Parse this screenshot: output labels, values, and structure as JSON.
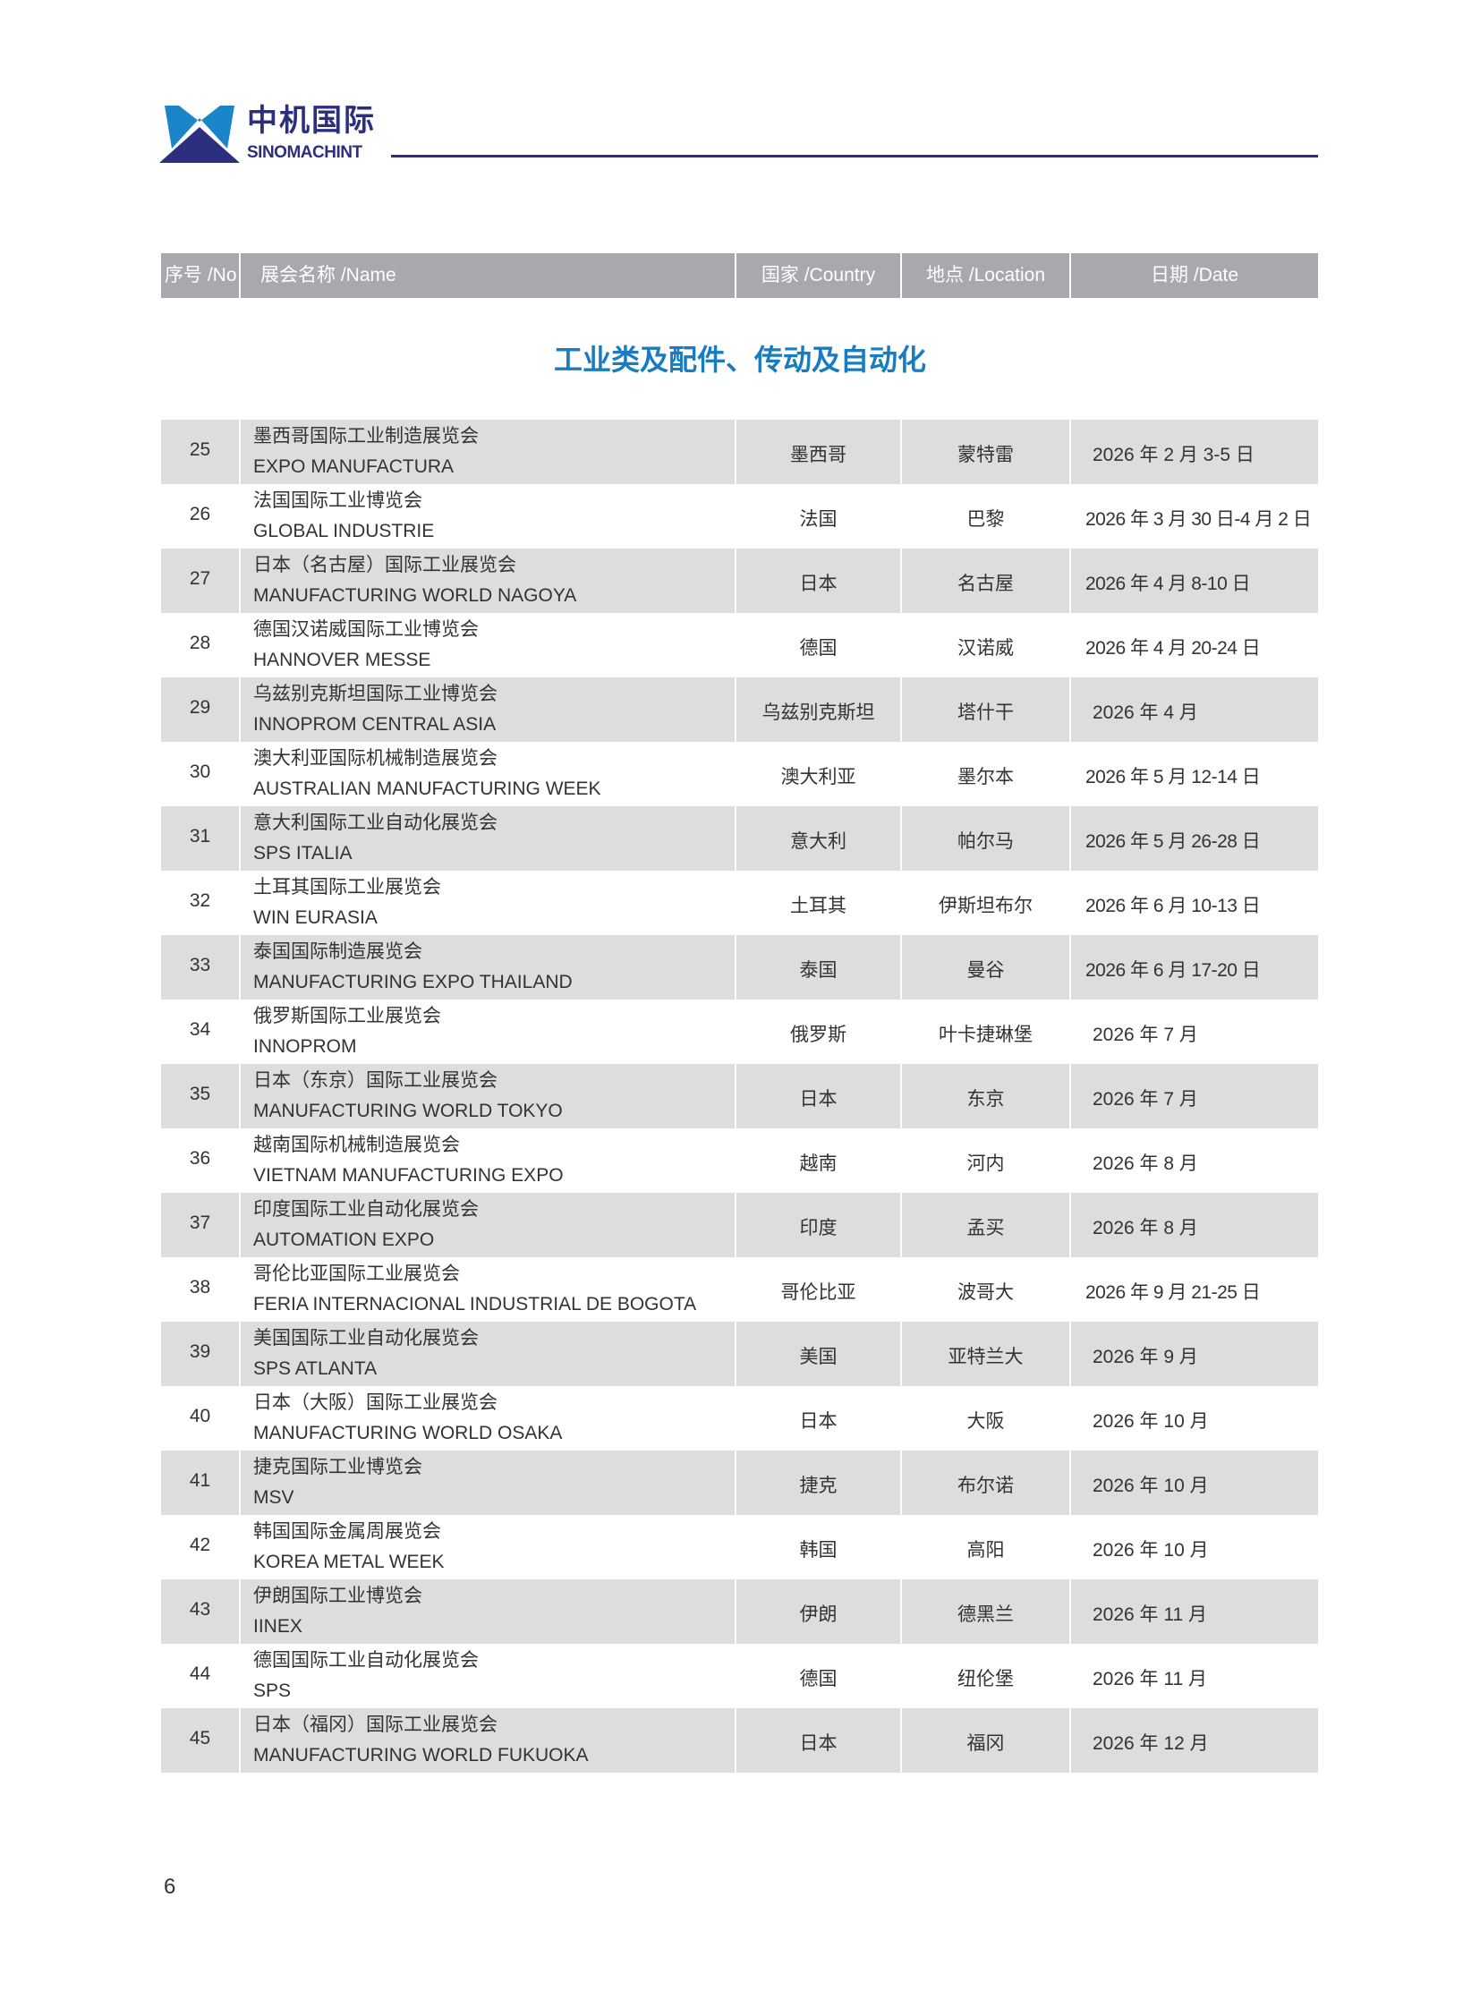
{
  "header": {
    "logo_cn": "中机国际",
    "logo_en": "SINOMACHINT",
    "colors": {
      "navy": "#2b2f7e",
      "blue": "#1a85c8"
    }
  },
  "columns": [
    "序号 /No",
    "展会名称 /Name",
    "国家 /Country",
    "地点 /Location",
    "日期 /Date"
  ],
  "section_title": "工业类及配件、传动及自动化",
  "rows": [
    {
      "no": "25",
      "name_cn": "墨西哥国际工业制造展览会",
      "name_en": "EXPO MANUFACTURA",
      "country": "墨西哥",
      "location": "蒙特雷",
      "date": "2026 年 2 月 3-5 日"
    },
    {
      "no": "26",
      "name_cn": "法国国际工业博览会",
      "name_en": "GLOBAL INDUSTRIE",
      "country": "法国",
      "location": "巴黎",
      "date": "2026 年 3 月 30 日-4 月 2 日"
    },
    {
      "no": "27",
      "name_cn": "日本（名古屋）国际工业展览会",
      "name_en": "MANUFACTURING WORLD NAGOYA",
      "country": "日本",
      "location": "名古屋",
      "date": "2026 年 4 月 8-10 日"
    },
    {
      "no": "28",
      "name_cn": "德国汉诺威国际工业博览会",
      "name_en": "HANNOVER MESSE",
      "country": "德国",
      "location": "汉诺威",
      "date": "2026 年 4 月 20-24 日"
    },
    {
      "no": "29",
      "name_cn": "乌兹别克斯坦国际工业博览会",
      "name_en": "INNOPROM CENTRAL ASIA",
      "country": "乌兹别克斯坦",
      "location": "塔什干",
      "date": "2026 年 4 月"
    },
    {
      "no": "30",
      "name_cn": "澳大利亚国际机械制造展览会",
      "name_en": "AUSTRALIAN MANUFACTURING WEEK",
      "country": "澳大利亚",
      "location": "墨尔本",
      "date": "2026 年 5 月 12-14 日"
    },
    {
      "no": "31",
      "name_cn": "意大利国际工业自动化展览会",
      "name_en": "SPS ITALIA",
      "country": "意大利",
      "location": "帕尔马",
      "date": "2026 年 5 月 26-28 日"
    },
    {
      "no": "32",
      "name_cn": "土耳其国际工业展览会",
      "name_en": "WIN EURASIA",
      "country": "土耳其",
      "location": "伊斯坦布尔",
      "date": "2026 年 6 月 10-13 日"
    },
    {
      "no": "33",
      "name_cn": "泰国国际制造展览会",
      "name_en": "MANUFACTURING EXPO THAILAND",
      "country": "泰国",
      "location": "曼谷",
      "date": "2026 年 6 月 17-20 日"
    },
    {
      "no": "34",
      "name_cn": "俄罗斯国际工业展览会",
      "name_en": "INNOPROM",
      "country": "俄罗斯",
      "location": "叶卡捷琳堡",
      "date": "2026 年 7 月"
    },
    {
      "no": "35",
      "name_cn": "日本（东京）国际工业展览会",
      "name_en": "MANUFACTURING WORLD TOKYO",
      "country": "日本",
      "location": "东京",
      "date": "2026 年 7 月"
    },
    {
      "no": "36",
      "name_cn": "越南国际机械制造展览会",
      "name_en": "VIETNAM MANUFACTURING EXPO",
      "country": "越南",
      "location": "河内",
      "date": "2026 年 8 月"
    },
    {
      "no": "37",
      "name_cn": "印度国际工业自动化展览会",
      "name_en": "AUTOMATION EXPO",
      "country": "印度",
      "location": "孟买",
      "date": "2026 年 8 月"
    },
    {
      "no": "38",
      "name_cn": "哥伦比亚国际工业展览会",
      "name_en": "FERIA INTERNACIONAL INDUSTRIAL DE BOGOTA",
      "country": "哥伦比亚",
      "location": "波哥大",
      "date": "2026 年 9 月 21-25 日"
    },
    {
      "no": "39",
      "name_cn": "美国国际工业自动化展览会",
      "name_en": "SPS ATLANTA",
      "country": "美国",
      "location": "亚特兰大",
      "date": "2026 年 9 月"
    },
    {
      "no": "40",
      "name_cn": "日本（大阪）国际工业展览会",
      "name_en": "MANUFACTURING WORLD OSAKA",
      "country": "日本",
      "location": "大阪",
      "date": "2026 年 10 月"
    },
    {
      "no": "41",
      "name_cn": "捷克国际工业博览会",
      "name_en": "MSV",
      "country": "捷克",
      "location": "布尔诺",
      "date": "2026 年 10 月"
    },
    {
      "no": "42",
      "name_cn": "韩国国际金属周展览会",
      "name_en": "KOREA METAL WEEK",
      "country": "韩国",
      "location": "高阳",
      "date": "2026 年 10 月"
    },
    {
      "no": "43",
      "name_cn": "伊朗国际工业博览会",
      "name_en": "IINEX",
      "country": "伊朗",
      "location": "德黑兰",
      "date": "2026 年 11 月"
    },
    {
      "no": "44",
      "name_cn": "德国国际工业自动化展览会",
      "name_en": "SPS",
      "country": "德国",
      "location": "纽伦堡",
      "date": "2026 年 11 月"
    },
    {
      "no": "45",
      "name_cn": "日本（福冈）国际工业展览会",
      "name_en": "MANUFACTURING WORLD FUKUOKA",
      "country": "日本",
      "location": "福冈",
      "date": "2026 年 12 月"
    }
  ],
  "page_number": "6"
}
